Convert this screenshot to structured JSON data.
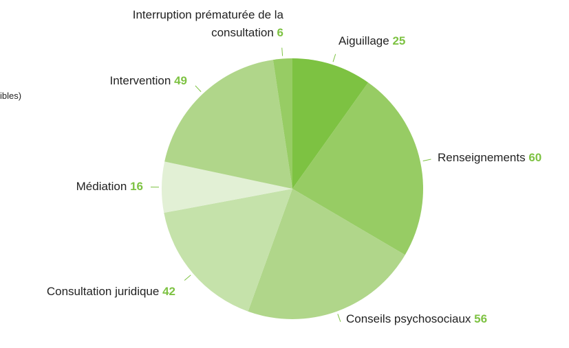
{
  "note": "ibles)",
  "chart_data": {
    "type": "pie",
    "categories": [
      "Aiguillage",
      "Renseignements",
      "Conseils psychosociaux",
      "Consultation juridique",
      "Médiation",
      "Intervention",
      "Interruption prématurée de la consultation"
    ],
    "values": [
      25,
      60,
      56,
      42,
      16,
      49,
      6
    ],
    "colors": [
      "#7dc242",
      "#97cc64",
      "#b0d68a",
      "#c5e2aa",
      "#e2f0d5",
      "#b0d68a",
      "#97cc64"
    ],
    "value_color": "#7dc242"
  }
}
